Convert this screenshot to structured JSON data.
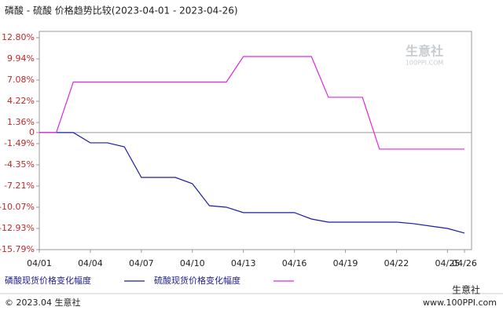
{
  "chart_data": {
    "type": "line",
    "title": "磷酸 - 硫酸 价格趋势比较(2023-04-01 - 2023-04-26)",
    "categories": [
      "04/01",
      null,
      null,
      "04/04",
      null,
      null,
      "04/07",
      null,
      null,
      "04/10",
      null,
      null,
      "04/13",
      null,
      null,
      "04/16",
      null,
      null,
      "04/19",
      null,
      null,
      "04/22",
      null,
      null,
      "04/25",
      "04/26"
    ],
    "series": [
      {
        "name": "磷酸现货价格变化幅度",
        "color": "#1c1ca6",
        "values": [
          0,
          0,
          0,
          -1.38,
          -1.38,
          -1.92,
          -6.05,
          -6.05,
          -6.05,
          -6.9,
          -9.86,
          -10.07,
          -10.8,
          -10.8,
          -10.8,
          -10.8,
          -11.66,
          -12.08,
          -12.08,
          -12.08,
          -12.08,
          -12.08,
          -12.29,
          -12.61,
          -12.93,
          -13.56
        ]
      },
      {
        "name": "硫酸现货价格变化幅度",
        "color": "#e024e0",
        "values": [
          0,
          0,
          6.82,
          6.82,
          6.82,
          6.82,
          6.82,
          6.82,
          6.82,
          6.82,
          6.82,
          6.82,
          10.26,
          10.26,
          10.26,
          10.26,
          10.26,
          4.76,
          4.76,
          4.76,
          -2.23,
          -2.23,
          -2.23,
          -2.23,
          -2.23,
          -2.23
        ]
      }
    ],
    "ylim": [
      -15.79,
      12.8
    ],
    "yticks": [
      {
        "value": 12.8,
        "label": "12.80%"
      },
      {
        "value": 9.94,
        "label": "9.94%"
      },
      {
        "value": 7.08,
        "label": "7.08%"
      },
      {
        "value": 4.22,
        "label": "4.22%"
      },
      {
        "value": 1.36,
        "label": "1.36%"
      },
      0,
      {
        "value": -1.49,
        "label": "-1.49%"
      },
      {
        "value": -4.35,
        "label": "-4.35%"
      },
      {
        "value": -7.21,
        "label": "-7.21%"
      },
      {
        "value": -10.07,
        "label": "-10.07%"
      },
      {
        "value": -12.93,
        "label": "-12.93%"
      },
      {
        "value": -15.79,
        "label": "-15.79%"
      }
    ],
    "grid": false,
    "watermark": "生意社",
    "watermark_url": "100PPI.COM",
    "footer": "© 2023.04 生意社",
    "footer_brand": "生意社",
    "footer_url": "www.100PPI.com"
  }
}
